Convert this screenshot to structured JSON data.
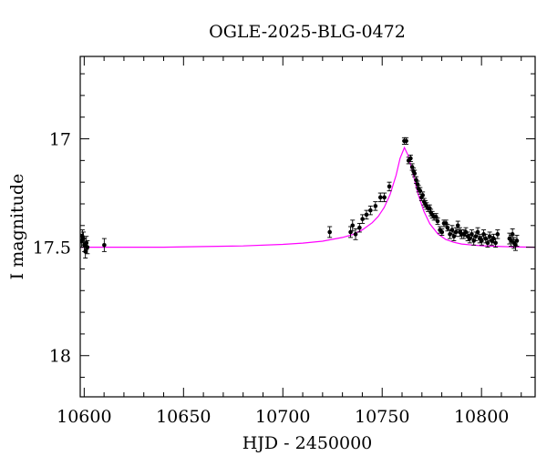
{
  "chart_data": {
    "type": "scatter",
    "title": "OGLE-2025-BLG-0472",
    "xlabel": "HJD - 2450000",
    "ylabel": "I magnitude",
    "xlim": [
      10598,
      10827
    ],
    "ylim": [
      16.62,
      18.19
    ],
    "y_inverted": true,
    "x_ticks": [
      10600,
      10650,
      10700,
      10750,
      10800
    ],
    "x_tick_labels": [
      "10600",
      "10650",
      "10700",
      "10750",
      "10800"
    ],
    "y_ticks": [
      17,
      17.5,
      18
    ],
    "y_tick_labels": [
      "17",
      "17.5",
      "18"
    ],
    "grid": false,
    "legend": "none",
    "colors": {
      "points": "#000000",
      "model": "#ff00ff",
      "frame": "#000000"
    },
    "model": {
      "name": "",
      "baseline_mag": 17.5,
      "peak_mag": 17.04,
      "t0": 10761.2,
      "x": [
        10598,
        10620,
        10640,
        10660,
        10680,
        10700,
        10710,
        10720,
        10730,
        10735,
        10740,
        10745,
        10748,
        10751,
        10754,
        10757,
        10759,
        10761.2,
        10763,
        10765,
        10768,
        10771,
        10774,
        10778,
        10782,
        10786,
        10790,
        10795,
        10800,
        10805,
        10810,
        10815,
        10820,
        10827
      ],
      "y": [
        17.5,
        17.5,
        17.5,
        17.497,
        17.494,
        17.487,
        17.481,
        17.472,
        17.455,
        17.442,
        17.42,
        17.387,
        17.358,
        17.317,
        17.257,
        17.168,
        17.09,
        17.04,
        17.075,
        17.143,
        17.252,
        17.335,
        17.392,
        17.438,
        17.464,
        17.477,
        17.485,
        17.49,
        17.493,
        17.495,
        17.497,
        17.498,
        17.499,
        17.5
      ]
    },
    "series": [
      {
        "x": [
          10598.6,
          10599.1,
          10599.6,
          10600.1,
          10600.6,
          10601.1,
          10601.6,
          10610.1,
          10723.6,
          10734.1,
          10735.1,
          10736.6,
          10738.6,
          10740.1,
          10742.1,
          10744.1,
          10746.6,
          10749.1,
          10751.1,
          10753.6,
          10761.1,
          10762.1,
          10763.3,
          10764.3,
          10765.1,
          10765.8,
          10766.3,
          10767.1,
          10767.8,
          10768.3,
          10769.1,
          10769.8,
          10770.4,
          10771.1,
          10771.7,
          10772.3,
          10773.1,
          10773.9,
          10774.5,
          10775.2,
          10776.1,
          10777.1,
          10777.9,
          10779.1,
          10780.1,
          10781.1,
          10782.1,
          10782.9,
          10784.1,
          10785.2,
          10786.1,
          10787.1,
          10788.1,
          10789.1,
          10790.1,
          10791.1,
          10792.1,
          10793.1,
          10794.1,
          10795.1,
          10796.1,
          10797.1,
          10798.1,
          10799.1,
          10800.1,
          10801.1,
          10802.1,
          10803.1,
          10804.1,
          10805.1,
          10806.1,
          10807.1,
          10808.1,
          10814.1,
          10814.9,
          10815.6,
          10816.3,
          10817.1,
          10817.8
        ],
        "y": [
          17.47,
          17.45,
          17.46,
          17.49,
          17.52,
          17.48,
          17.5,
          17.49,
          17.43,
          17.43,
          17.4,
          17.44,
          17.41,
          17.37,
          17.35,
          17.33,
          17.31,
          17.27,
          17.27,
          17.22,
          17.01,
          17.01,
          17.1,
          17.09,
          17.13,
          17.15,
          17.16,
          17.19,
          17.21,
          17.23,
          17.24,
          17.27,
          17.26,
          17.29,
          17.3,
          17.31,
          17.32,
          17.32,
          17.34,
          17.35,
          17.36,
          17.36,
          17.38,
          17.42,
          17.43,
          17.39,
          17.39,
          17.41,
          17.44,
          17.42,
          17.45,
          17.43,
          17.4,
          17.43,
          17.44,
          17.44,
          17.43,
          17.45,
          17.46,
          17.44,
          17.47,
          17.45,
          17.43,
          17.46,
          17.47,
          17.44,
          17.46,
          17.48,
          17.45,
          17.47,
          17.46,
          17.48,
          17.44,
          17.46,
          17.47,
          17.44,
          17.48,
          17.49,
          17.47
        ],
        "err": [
          0.03,
          0.03,
          0.03,
          0.03,
          0.03,
          0.03,
          0.03,
          0.03,
          0.025,
          0.025,
          0.025,
          0.025,
          0.02,
          0.02,
          0.02,
          0.02,
          0.02,
          0.02,
          0.02,
          0.02,
          0.015,
          0.015,
          0.015,
          0.015,
          0.015,
          0.015,
          0.015,
          0.015,
          0.015,
          0.015,
          0.015,
          0.015,
          0.015,
          0.015,
          0.015,
          0.015,
          0.015,
          0.015,
          0.015,
          0.015,
          0.015,
          0.015,
          0.015,
          0.015,
          0.015,
          0.015,
          0.015,
          0.015,
          0.02,
          0.02,
          0.02,
          0.02,
          0.02,
          0.02,
          0.02,
          0.02,
          0.02,
          0.02,
          0.02,
          0.02,
          0.02,
          0.02,
          0.02,
          0.02,
          0.02,
          0.02,
          0.02,
          0.02,
          0.02,
          0.02,
          0.02,
          0.02,
          0.02,
          0.025,
          0.025,
          0.025,
          0.025,
          0.025,
          0.025
        ]
      }
    ]
  }
}
